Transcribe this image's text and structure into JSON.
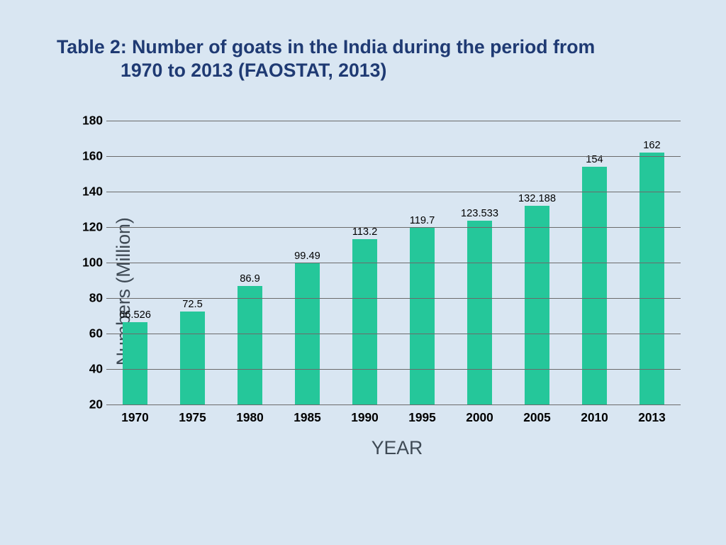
{
  "page": {
    "background_color": "#d9e6f2",
    "background_texture_tint": "#cfe0ef"
  },
  "title": {
    "prefix": "Table 2:  ",
    "text_line1": "Number of goats in the India during the period from",
    "text_line2": "1970 to 2013 (FAOSTAT, 2013)",
    "color": "#1f3a73",
    "fontsize_pt": 20
  },
  "chart": {
    "type": "bar",
    "categories": [
      "1970",
      "1975",
      "1980",
      "1985",
      "1990",
      "1995",
      "2000",
      "2005",
      "2010",
      "2013"
    ],
    "values": [
      66.526,
      72.5,
      86.9,
      99.49,
      113.2,
      119.7,
      123.533,
      132.188,
      154,
      162
    ],
    "value_labels": [
      "66.526",
      "72.5",
      "86.9",
      "99.49",
      "113.2",
      "119.7",
      "123.533",
      "132.188",
      "154",
      "162"
    ],
    "bar_color": "#25c79a",
    "y_axis": {
      "label": "Numbers (Million)",
      "label_color": "#3f4a55",
      "label_fontsize_pt": 20,
      "min": 20,
      "max": 180,
      "tick_step": 20,
      "tick_color": "#000000",
      "tick_fontsize_pt": 13
    },
    "x_axis": {
      "label": "YEAR",
      "label_color": "#3f4a55",
      "label_fontsize_pt": 20,
      "tick_color": "#000000",
      "tick_fontsize_pt": 13
    },
    "gridline_color": "#6b6b6b",
    "baseline_color": "#6b6b6b",
    "value_label_fontsize_pt": 11,
    "value_label_color": "#000000",
    "bar_width_ratio": 0.42
  }
}
